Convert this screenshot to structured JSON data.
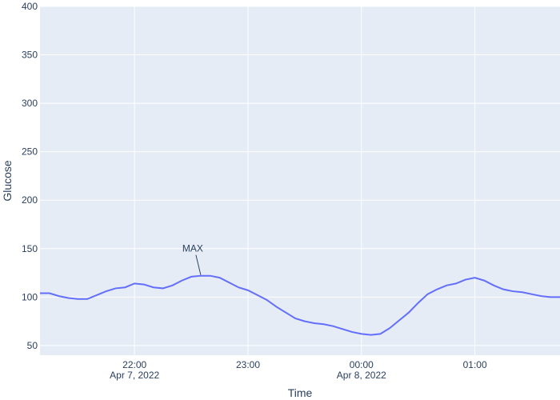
{
  "chart_data": {
    "type": "line",
    "xlabel": "Time",
    "ylabel": "Glucose",
    "ylim": [
      40,
      400
    ],
    "xlim": [
      "2022-04-07T21:10",
      "2022-04-08T01:45"
    ],
    "x_ticks": [
      {
        "time": "2022-04-07T22:00",
        "label": "22:00",
        "sublabel": "Apr 7, 2022"
      },
      {
        "time": "2022-04-07T23:00",
        "label": "23:00",
        "sublabel": ""
      },
      {
        "time": "2022-04-08T00:00",
        "label": "00:00",
        "sublabel": "Apr 8, 2022"
      },
      {
        "time": "2022-04-08T01:00",
        "label": "01:00",
        "sublabel": ""
      }
    ],
    "y_ticks": [
      50,
      100,
      150,
      200,
      250,
      300,
      350,
      400
    ],
    "grid": true,
    "background": "#e5ecf6",
    "line_color": "#636efa",
    "series": [
      {
        "x": [
          "2022-04-07T21:10",
          "2022-04-07T21:15",
          "2022-04-07T21:20",
          "2022-04-07T21:25",
          "2022-04-07T21:30",
          "2022-04-07T21:35",
          "2022-04-07T21:40",
          "2022-04-07T21:45",
          "2022-04-07T21:50",
          "2022-04-07T21:55",
          "2022-04-07T22:00",
          "2022-04-07T22:05",
          "2022-04-07T22:10",
          "2022-04-07T22:15",
          "2022-04-07T22:20",
          "2022-04-07T22:25",
          "2022-04-07T22:30",
          "2022-04-07T22:35",
          "2022-04-07T22:40",
          "2022-04-07T22:45",
          "2022-04-07T22:50",
          "2022-04-07T22:55",
          "2022-04-07T23:00",
          "2022-04-07T23:05",
          "2022-04-07T23:10",
          "2022-04-07T23:15",
          "2022-04-07T23:20",
          "2022-04-07T23:25",
          "2022-04-07T23:30",
          "2022-04-07T23:35",
          "2022-04-07T23:40",
          "2022-04-07T23:45",
          "2022-04-07T23:50",
          "2022-04-07T23:55",
          "2022-04-08T00:00",
          "2022-04-08T00:05",
          "2022-04-08T00:10",
          "2022-04-08T00:15",
          "2022-04-08T00:20",
          "2022-04-08T00:25",
          "2022-04-08T00:30",
          "2022-04-08T00:35",
          "2022-04-08T00:40",
          "2022-04-08T00:45",
          "2022-04-08T00:50",
          "2022-04-08T00:55",
          "2022-04-08T01:00",
          "2022-04-08T01:05",
          "2022-04-08T01:10",
          "2022-04-08T01:15",
          "2022-04-08T01:20",
          "2022-04-08T01:25",
          "2022-04-08T01:30",
          "2022-04-08T01:35",
          "2022-04-08T01:40",
          "2022-04-08T01:45"
        ],
        "y": [
          104,
          104,
          101,
          99,
          98,
          98,
          102,
          106,
          109,
          110,
          114,
          113,
          110,
          109,
          112,
          117,
          121,
          122,
          122,
          120,
          115,
          110,
          107,
          102,
          97,
          90,
          84,
          78,
          75,
          73,
          72,
          70,
          67,
          64,
          62,
          61,
          62,
          68,
          76,
          84,
          94,
          103,
          108,
          112,
          114,
          118,
          120,
          117,
          112,
          108,
          106,
          105,
          103,
          101,
          100,
          100
        ]
      }
    ],
    "annotations": [
      {
        "text": "MAX",
        "x": "2022-04-07T22:35",
        "y": 122
      }
    ]
  }
}
